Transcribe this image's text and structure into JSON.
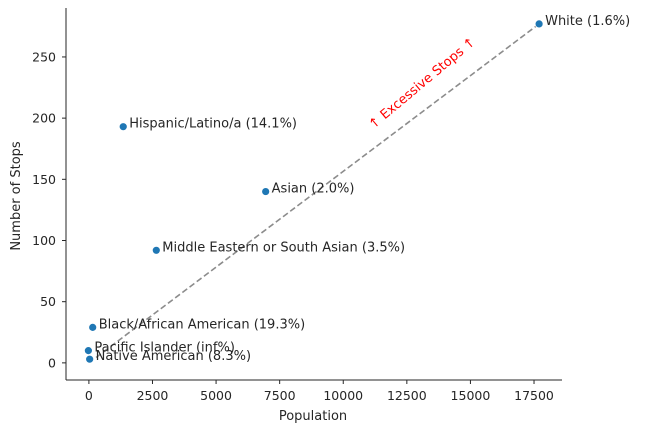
{
  "chart_data": {
    "type": "scatter",
    "title": "",
    "xlabel": "Population",
    "ylabel": "Number of Stops",
    "xlim": [
      -900,
      18600
    ],
    "ylim": [
      -14,
      290
    ],
    "xticks": [
      0,
      2500,
      5000,
      7500,
      10000,
      12500,
      15000,
      17500
    ],
    "yticks": [
      0,
      50,
      100,
      150,
      200,
      250
    ],
    "grid": false,
    "marker_color": "#1f77b4",
    "points": [
      {
        "label": "White (1.6%)",
        "x": 17700,
        "y": 277
      },
      {
        "label": "Hispanic/Latino/a (14.1%)",
        "x": 1350,
        "y": 193
      },
      {
        "label": "Asian (2.0%)",
        "x": 6950,
        "y": 140
      },
      {
        "label": "Middle Eastern or South Asian (3.5%)",
        "x": 2650,
        "y": 92
      },
      {
        "label": "Black/African American (19.3%)",
        "x": 150,
        "y": 29
      },
      {
        "label": "Pacific Islander (inf%)",
        "x": -20,
        "y": 10
      },
      {
        "label": "Native American (8.3%)",
        "x": 30,
        "y": 3
      }
    ],
    "reference_line": {
      "style": "dashed",
      "color": "#8c8c8c",
      "from": [
        0,
        0
      ],
      "to": [
        17700,
        277
      ]
    },
    "annotation": {
      "text": "↑ Excessive Stops ↑",
      "color": "#ff0000",
      "x": 13200,
      "y": 226,
      "rotation_deg": -40
    }
  }
}
